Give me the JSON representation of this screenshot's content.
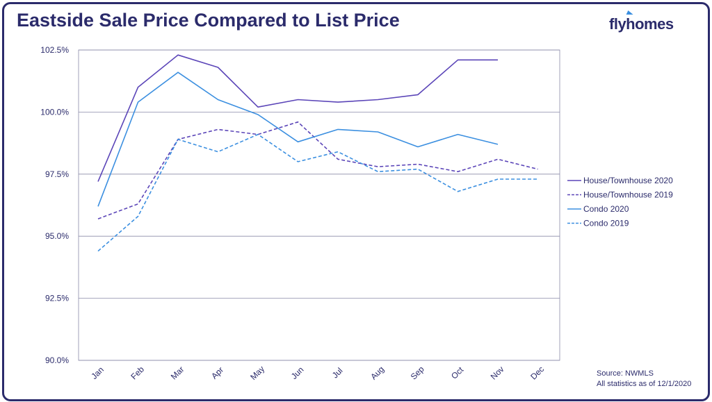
{
  "title": "Eastside Sale Price Compared to List Price",
  "logo": "flyhomes",
  "source": {
    "line1": "Source: NWMLS",
    "line2": "All statistics as of 12/1/2020"
  },
  "colors": {
    "navy": "#2b2b6b",
    "house": "#5b45b8",
    "condo": "#3b8fe0",
    "grid": "#8a8aa8"
  },
  "chart_data": {
    "type": "line",
    "x": [
      "Jan",
      "Feb",
      "Mar",
      "Apr",
      "May",
      "Jun",
      "Jul",
      "Aug",
      "Sep",
      "Oct",
      "Nov",
      "Dec"
    ],
    "ylim": [
      90.0,
      102.5
    ],
    "yticks": [
      "102.5%",
      "100.0%",
      "97.5%",
      "95.0%",
      "92.5%",
      "90.0%"
    ],
    "ytick_values": [
      102.5,
      100.0,
      97.5,
      95.0,
      92.5,
      90.0
    ],
    "grid": true,
    "legend_position": "right",
    "series": [
      {
        "name": "House/Townhouse 2020",
        "color": "#5b45b8",
        "dash": false,
        "values": [
          97.2,
          101.0,
          102.3,
          101.8,
          100.2,
          100.5,
          100.4,
          100.5,
          100.7,
          102.1,
          102.1,
          null
        ]
      },
      {
        "name": "House/Townhouse 2019",
        "color": "#5b45b8",
        "dash": true,
        "values": [
          95.7,
          96.3,
          98.9,
          99.3,
          99.1,
          99.6,
          98.1,
          97.8,
          97.9,
          97.6,
          98.1,
          97.7
        ]
      },
      {
        "name": "Condo 2020",
        "color": "#3b8fe0",
        "dash": false,
        "values": [
          96.2,
          100.4,
          101.6,
          100.5,
          99.9,
          98.8,
          99.3,
          99.2,
          98.6,
          99.1,
          98.7,
          null
        ]
      },
      {
        "name": "Condo 2019",
        "color": "#3b8fe0",
        "dash": true,
        "values": [
          94.4,
          95.8,
          98.9,
          98.4,
          99.1,
          98.0,
          98.4,
          97.6,
          97.7,
          96.8,
          97.3,
          97.3
        ]
      }
    ]
  }
}
